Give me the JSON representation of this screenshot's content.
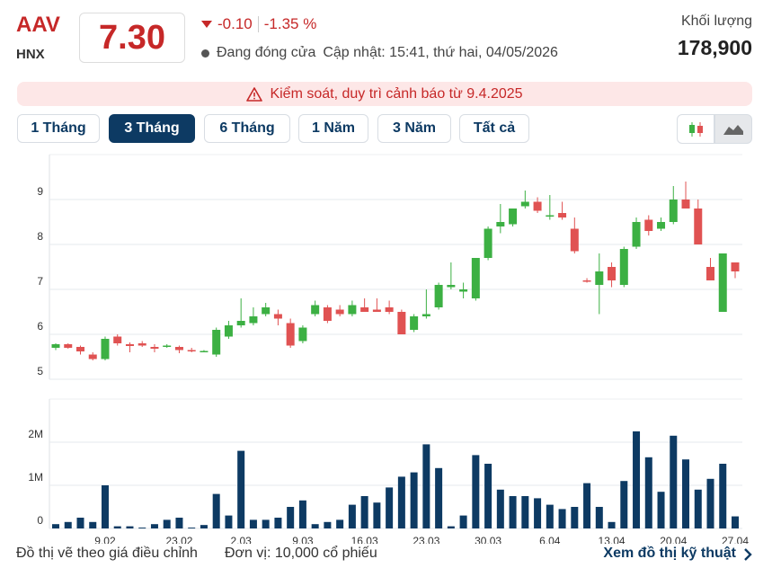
{
  "header": {
    "symbol": "AAV",
    "exchange": "HNX",
    "price": "7.30",
    "change": "-0.10",
    "change_percent": "-1.35 %",
    "status": "Đang đóng cửa",
    "updated": "Cập nhật: 15:41, thứ hai, 04/05/2026",
    "volume_label": "Khối lượng",
    "volume": "178,900"
  },
  "alert": "Kiểm soát, duy trì cảnh báo từ 9.4.2025",
  "tabs": [
    "1 Tháng",
    "3 Tháng",
    "6 Tháng",
    "1 Năm",
    "3 Năm",
    "Tất cả"
  ],
  "active_tab": 1,
  "footer": {
    "note": "Đồ thị vẽ theo giá điều chỉnh",
    "unit": "Đơn vị: 10,000 cổ phiếu",
    "link": "Xem đồ thị kỹ thuật"
  },
  "chart_data": [
    {
      "type": "candlestick",
      "up_color": "#3cb043",
      "down_color": "#e05252",
      "grid": true,
      "ylim": [
        5,
        10
      ],
      "yticks": [
        5,
        6,
        7,
        8,
        9
      ],
      "categories": [
        null,
        null,
        null,
        null,
        "9.02",
        null,
        null,
        null,
        null,
        null,
        "23.02",
        null,
        null,
        null,
        null,
        "2.03",
        null,
        null,
        null,
        null,
        "9.03",
        null,
        null,
        null,
        null,
        "16.03",
        null,
        null,
        null,
        null,
        "23.03",
        null,
        null,
        null,
        null,
        "30.03",
        null,
        null,
        null,
        null,
        "6.04",
        null,
        null,
        null,
        null,
        "13.04",
        null,
        null,
        null,
        null,
        "20.04",
        null,
        null,
        null,
        null,
        "27.04"
      ],
      "open": [
        5.7,
        5.78,
        5.72,
        5.55,
        5.45,
        5.95,
        5.78,
        5.8,
        5.72,
        5.72,
        5.72,
        5.65,
        5.62,
        5.55,
        5.95,
        6.2,
        6.25,
        6.45,
        6.45,
        6.25,
        5.85,
        6.45,
        6.6,
        6.55,
        6.45,
        6.6,
        6.55,
        6.6,
        6.5,
        6.1,
        6.4,
        6.6,
        7.05,
        6.95,
        6.8,
        7.7,
        8.4,
        8.45,
        8.85,
        8.95,
        8.65,
        8.7,
        8.35,
        7.2,
        7.1,
        7.5,
        7.1,
        7.95,
        8.55,
        8.35,
        8.5,
        9.0,
        8.8,
        7.5,
        6.5,
        7.6
      ],
      "high": [
        5.8,
        5.8,
        5.75,
        5.6,
        5.95,
        6.0,
        5.82,
        5.85,
        5.78,
        5.78,
        5.75,
        5.7,
        5.65,
        6.15,
        6.3,
        6.8,
        6.6,
        6.7,
        6.55,
        6.35,
        6.2,
        6.75,
        6.65,
        6.65,
        6.75,
        6.8,
        6.8,
        6.75,
        6.55,
        6.45,
        7.0,
        7.15,
        7.6,
        7.15,
        7.7,
        8.4,
        8.9,
        8.8,
        9.2,
        9.05,
        9.1,
        8.95,
        8.6,
        7.25,
        7.8,
        7.6,
        7.95,
        8.6,
        8.65,
        8.6,
        9.3,
        9.4,
        9.0,
        7.7,
        7.8,
        7.6
      ],
      "low": [
        5.65,
        5.68,
        5.55,
        5.42,
        5.42,
        5.75,
        5.6,
        5.72,
        5.6,
        5.7,
        5.58,
        5.6,
        5.6,
        5.5,
        5.9,
        6.15,
        6.2,
        6.4,
        6.2,
        5.7,
        5.8,
        6.4,
        6.25,
        6.4,
        6.4,
        6.5,
        6.5,
        6.45,
        6.0,
        6.05,
        6.35,
        6.55,
        7.0,
        6.8,
        6.75,
        7.65,
        8.25,
        8.4,
        8.8,
        8.7,
        8.55,
        8.55,
        7.8,
        7.15,
        6.45,
        7.05,
        7.05,
        7.9,
        8.2,
        8.3,
        8.45,
        8.8,
        8.0,
        7.2,
        6.5,
        7.25
      ],
      "close": [
        5.78,
        5.7,
        5.62,
        5.45,
        5.9,
        5.8,
        5.74,
        5.75,
        5.68,
        5.75,
        5.65,
        5.64,
        5.63,
        6.1,
        6.2,
        6.3,
        6.4,
        6.6,
        6.35,
        5.75,
        6.15,
        6.65,
        6.3,
        6.45,
        6.65,
        6.5,
        6.5,
        6.5,
        6.0,
        6.4,
        6.45,
        7.1,
        7.1,
        7.0,
        7.7,
        8.35,
        8.5,
        8.8,
        8.95,
        8.75,
        8.65,
        8.6,
        7.85,
        7.18,
        7.4,
        7.2,
        7.9,
        8.5,
        8.3,
        8.5,
        9.0,
        8.8,
        8.0,
        7.2,
        7.8,
        7.4
      ]
    },
    {
      "type": "bar",
      "color": "#0d3a63",
      "grid": true,
      "ylim": [
        0,
        3000000
      ],
      "yticks": [
        0,
        {
          "value": 1000000,
          "label": "1M"
        },
        {
          "value": 2000000,
          "label": "2M"
        }
      ],
      "values": [
        100000,
        150000,
        250000,
        150000,
        1000000,
        50000,
        50000,
        20000,
        100000,
        200000,
        250000,
        20000,
        80000,
        800000,
        300000,
        1800000,
        200000,
        200000,
        250000,
        500000,
        650000,
        100000,
        150000,
        200000,
        550000,
        750000,
        600000,
        950000,
        1200000,
        1300000,
        1950000,
        1400000,
        50000,
        300000,
        1700000,
        1500000,
        900000,
        750000,
        750000,
        700000,
        550000,
        450000,
        500000,
        1050000,
        500000,
        150000,
        1100000,
        2250000,
        1650000,
        850000,
        2150000,
        1600000,
        900000,
        1150000,
        1500000,
        280000
      ]
    }
  ]
}
